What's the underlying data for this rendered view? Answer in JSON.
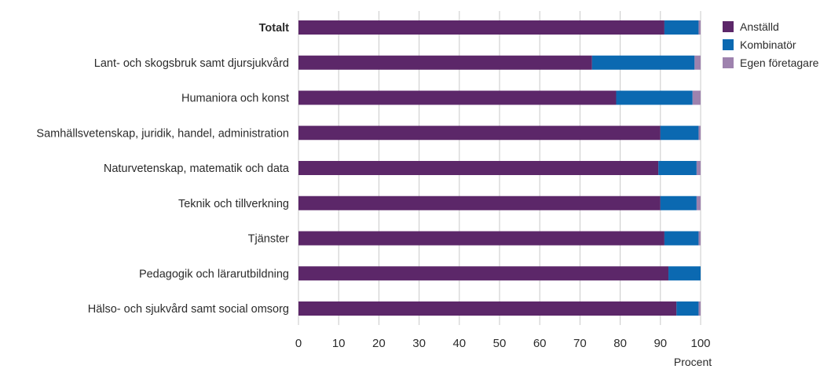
{
  "chart_data": {
    "type": "bar",
    "orientation": "horizontal",
    "stacked": true,
    "categories": [
      "Totalt",
      "Lant- och skogsbruk samt djursjukvård",
      "Humaniora och konst",
      "Samhällsvetenskap, juridik, handel, administration",
      "Naturvetenskap, matematik och data",
      "Teknik och tillverkning",
      "Tjänster",
      "Pedagogik och lärarutbildning",
      "Hälso- och sjukvård samt social omsorg"
    ],
    "bold_categories": [
      "Totalt"
    ],
    "series": [
      {
        "name": "Anställd",
        "color": "#5c2769",
        "values": [
          91,
          73,
          79,
          90,
          89.5,
          90,
          91,
          92,
          94
        ]
      },
      {
        "name": "Kombinatör",
        "color": "#0b69b1",
        "values": [
          8.5,
          25.5,
          19,
          9.5,
          9.5,
          9,
          8.5,
          8,
          5.5
        ]
      },
      {
        "name": "Egen företagare",
        "color": "#9e82ae",
        "values": [
          0.5,
          1.5,
          2,
          0.5,
          1,
          1,
          0.5,
          0,
          0.5
        ]
      }
    ],
    "xlabel": "Procent",
    "xlim": [
      0,
      100
    ],
    "xticks": [
      0,
      10,
      20,
      30,
      40,
      50,
      60,
      70,
      80,
      90,
      100
    ],
    "grid": "vertical",
    "legend_position": "top-right"
  }
}
